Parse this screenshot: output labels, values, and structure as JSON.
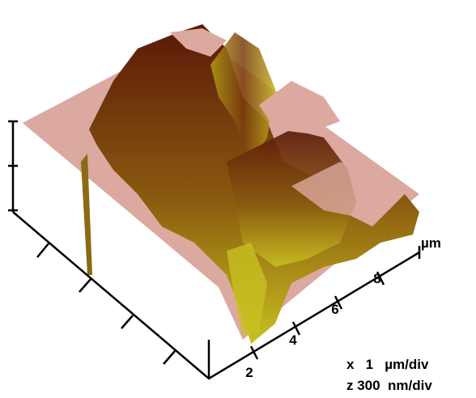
{
  "axis": {
    "ticks": [
      "2",
      "4",
      "6",
      "8"
    ],
    "unit": "µm"
  },
  "scale": {
    "x": "x   1   µm/div",
    "z": "z 300  nm/div"
  }
}
